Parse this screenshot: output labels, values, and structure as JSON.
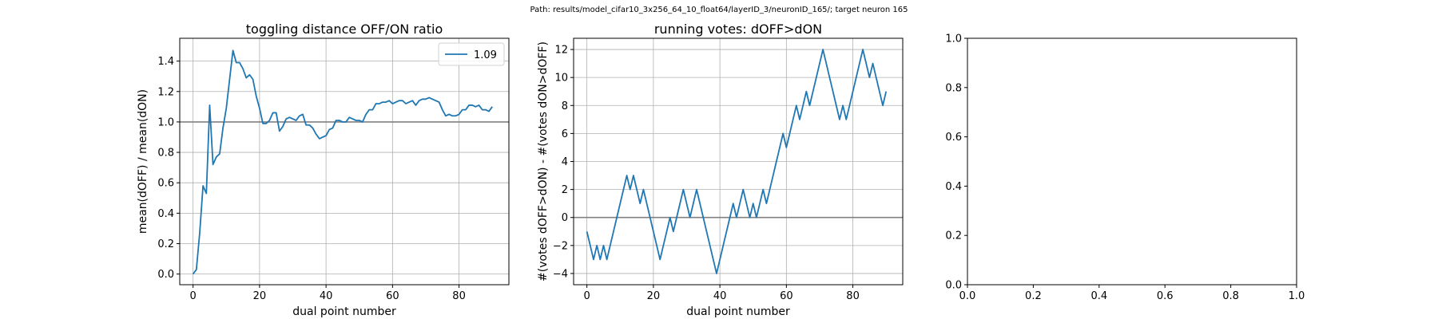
{
  "suptitle": "Path: results/model_cifar10_3x256_64_10_float64/layerID_3/neuronID_165/; target neuron 165",
  "chart_data": [
    {
      "type": "line",
      "title": "toggling distance OFF/ON ratio",
      "xlabel": "dual point number",
      "ylabel": "mean(dOFF) / mean(dON)",
      "xlim": [
        -4,
        95
      ],
      "ylim": [
        -0.07,
        1.55
      ],
      "xticks": [
        0,
        20,
        40,
        60,
        80
      ],
      "yticks": [
        0.0,
        0.2,
        0.4,
        0.6,
        0.8,
        1.0,
        1.2,
        1.4
      ],
      "ytick_labels": [
        "0.0",
        "0.2",
        "0.4",
        "0.6",
        "0.8",
        "1.0",
        "1.2",
        "1.4"
      ],
      "grid": true,
      "hline": 1.0,
      "legend": {
        "position": "upper right",
        "entries": [
          "1.09"
        ]
      },
      "series": [
        {
          "name": "1.09",
          "color": "#1f77b4",
          "x": [
            0,
            1,
            2,
            3,
            4,
            5,
            6,
            7,
            8,
            9,
            10,
            11,
            12,
            13,
            14,
            15,
            16,
            17,
            18,
            19,
            20,
            21,
            22,
            23,
            24,
            25,
            26,
            27,
            28,
            29,
            30,
            31,
            32,
            33,
            34,
            35,
            36,
            37,
            38,
            39,
            40,
            41,
            42,
            43,
            44,
            45,
            46,
            47,
            48,
            49,
            50,
            51,
            52,
            53,
            54,
            55,
            56,
            57,
            58,
            59,
            60,
            61,
            62,
            63,
            64,
            65,
            66,
            67,
            68,
            69,
            70,
            71,
            72,
            73,
            74,
            75,
            76,
            77,
            78,
            79,
            80,
            81,
            82,
            83,
            84,
            85,
            86,
            87,
            88,
            89,
            90
          ],
          "y": [
            0.0,
            0.03,
            0.27,
            0.58,
            0.53,
            1.11,
            0.72,
            0.77,
            0.79,
            0.96,
            1.09,
            1.28,
            1.47,
            1.39,
            1.39,
            1.35,
            1.29,
            1.31,
            1.28,
            1.17,
            1.09,
            0.99,
            0.99,
            1.01,
            1.06,
            1.06,
            0.94,
            0.97,
            1.02,
            1.03,
            1.02,
            1.01,
            1.04,
            1.05,
            0.98,
            0.98,
            0.96,
            0.92,
            0.89,
            0.9,
            0.91,
            0.95,
            0.96,
            1.01,
            1.01,
            1.0,
            1.0,
            1.03,
            1.02,
            1.01,
            1.01,
            1.0,
            1.05,
            1.08,
            1.08,
            1.12,
            1.12,
            1.13,
            1.13,
            1.14,
            1.12,
            1.13,
            1.14,
            1.14,
            1.12,
            1.13,
            1.14,
            1.11,
            1.14,
            1.15,
            1.15,
            1.16,
            1.15,
            1.14,
            1.13,
            1.08,
            1.04,
            1.05,
            1.04,
            1.04,
            1.05,
            1.08,
            1.08,
            1.11,
            1.11,
            1.1,
            1.11,
            1.08,
            1.08,
            1.07,
            1.1
          ]
        }
      ]
    },
    {
      "type": "line",
      "title": "running votes: dOFF>dON",
      "xlabel": "dual point number",
      "ylabel": "#(votes dOFF>dON) - #(votes dON>dOFF)",
      "xlim": [
        -4,
        95
      ],
      "ylim": [
        -4.8,
        12.8
      ],
      "xticks": [
        0,
        20,
        40,
        60,
        80
      ],
      "yticks": [
        -4,
        -2,
        0,
        2,
        4,
        6,
        8,
        10,
        12
      ],
      "ytick_labels": [
        "−4",
        "−2",
        "0",
        "2",
        "4",
        "6",
        "8",
        "10",
        "12"
      ],
      "grid": true,
      "hline": 0,
      "series": [
        {
          "color": "#1f77b4",
          "x": [
            0,
            1,
            2,
            3,
            4,
            5,
            6,
            7,
            8,
            9,
            10,
            11,
            12,
            13,
            14,
            15,
            16,
            17,
            18,
            19,
            20,
            21,
            22,
            23,
            24,
            25,
            26,
            27,
            28,
            29,
            30,
            31,
            32,
            33,
            34,
            35,
            36,
            37,
            38,
            39,
            40,
            41,
            42,
            43,
            44,
            45,
            46,
            47,
            48,
            49,
            50,
            51,
            52,
            53,
            54,
            55,
            56,
            57,
            58,
            59,
            60,
            61,
            62,
            63,
            64,
            65,
            66,
            67,
            68,
            69,
            70,
            71,
            72,
            73,
            74,
            75,
            76,
            77,
            78,
            79,
            80,
            81,
            82,
            83,
            84,
            85,
            86,
            87,
            88,
            89,
            90
          ],
          "y": [
            -1,
            -2,
            -3,
            -2,
            -3,
            -2,
            -3,
            -2,
            -1,
            0,
            1,
            2,
            3,
            2,
            3,
            2,
            1,
            2,
            1,
            0,
            -1,
            -2,
            -3,
            -2,
            -1,
            0,
            -1,
            0,
            1,
            2,
            1,
            0,
            1,
            2,
            1,
            0,
            -1,
            -2,
            -3,
            -4,
            -3,
            -2,
            -1,
            0,
            1,
            0,
            1,
            2,
            1,
            0,
            1,
            0,
            1,
            2,
            1,
            2,
            3,
            4,
            5,
            6,
            5,
            6,
            7,
            8,
            7,
            8,
            9,
            8,
            9,
            10,
            11,
            12,
            11,
            10,
            9,
            8,
            7,
            8,
            7,
            8,
            9,
            10,
            11,
            12,
            11,
            10,
            11,
            10,
            9,
            8,
            9
          ]
        }
      ]
    },
    {
      "type": "line",
      "title": "",
      "xlabel": "",
      "ylabel": "",
      "xlim": [
        0,
        1
      ],
      "ylim": [
        0,
        1
      ],
      "xticks": [
        0,
        0.2,
        0.4,
        0.6,
        0.8,
        1.0
      ],
      "yticks": [
        0,
        0.2,
        0.4,
        0.6,
        0.8,
        1.0
      ],
      "xtick_labels": [
        "0.0",
        "0.2",
        "0.4",
        "0.6",
        "0.8",
        "1.0"
      ],
      "ytick_labels": [
        "0.0",
        "0.2",
        "0.4",
        "0.6",
        "0.8",
        "1.0"
      ],
      "grid": false,
      "series": []
    }
  ]
}
